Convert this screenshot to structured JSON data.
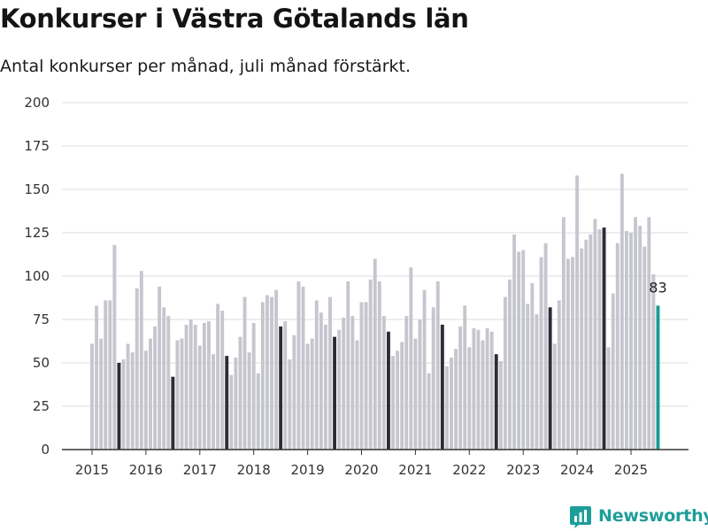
{
  "title": "Konkurser i Västra Götalands län",
  "subtitle": "Antal konkurser per månad, juli månad förstärkt.",
  "brand": {
    "name": "Newsworthy",
    "icon": "newsworthy-logo-icon",
    "color": "#1d9e9a"
  },
  "colors": {
    "bar": "#c6c6cf",
    "highlight": "#2e2c38",
    "latest": "#169b93",
    "grid": "#dcdcdc",
    "axis": "#333333"
  },
  "chart_data": {
    "type": "bar",
    "title": "Konkurser i Västra Götalands län",
    "subtitle": "Antal konkurser per månad, juli månad förstärkt.",
    "xlabel": "",
    "ylabel": "",
    "ylim": [
      0,
      200
    ],
    "yticks": [
      0,
      25,
      50,
      75,
      100,
      125,
      150,
      175,
      200
    ],
    "xticks": [
      "2015",
      "2016",
      "2017",
      "2018",
      "2019",
      "2020",
      "2021",
      "2022",
      "2023",
      "2024",
      "2025"
    ],
    "grid": true,
    "start": "2015-01",
    "end": "2025-07",
    "highlight_month": "07",
    "data_label": {
      "month": "2025-07",
      "text": "83"
    },
    "series": [
      {
        "year": "2015",
        "values": [
          61,
          83,
          64,
          86,
          86,
          118,
          50,
          52,
          61,
          56,
          93,
          103
        ]
      },
      {
        "year": "2016",
        "values": [
          57,
          64,
          71,
          94,
          82,
          77,
          42,
          63,
          64,
          72,
          75,
          72
        ]
      },
      {
        "year": "2017",
        "values": [
          60,
          73,
          74,
          55,
          84,
          80,
          54,
          43,
          53,
          65,
          88,
          56
        ]
      },
      {
        "year": "2018",
        "values": [
          73,
          44,
          85,
          89,
          88,
          92,
          71,
          74,
          52,
          66,
          97,
          94
        ]
      },
      {
        "year": "2019",
        "values": [
          61,
          64,
          86,
          79,
          72,
          88,
          65,
          69,
          76,
          97,
          77,
          63
        ]
      },
      {
        "year": "2020",
        "values": [
          85,
          85,
          98,
          110,
          97,
          77,
          68,
          54,
          57,
          62,
          77,
          105
        ]
      },
      {
        "year": "2021",
        "values": [
          64,
          75,
          92,
          44,
          82,
          97,
          72,
          48,
          53,
          58,
          71,
          83
        ]
      },
      {
        "year": "2022",
        "values": [
          59,
          70,
          69,
          63,
          70,
          68,
          55,
          51,
          88,
          98,
          124,
          114
        ]
      },
      {
        "year": "2023",
        "values": [
          115,
          84,
          96,
          78,
          111,
          119,
          82,
          61,
          86,
          134,
          110,
          111
        ]
      },
      {
        "year": "2024",
        "values": [
          158,
          116,
          121,
          124,
          133,
          127,
          128,
          59,
          90,
          119,
          159,
          126
        ]
      },
      {
        "year": "2025",
        "values": [
          125,
          134,
          129,
          117,
          134,
          101,
          83
        ]
      }
    ]
  }
}
